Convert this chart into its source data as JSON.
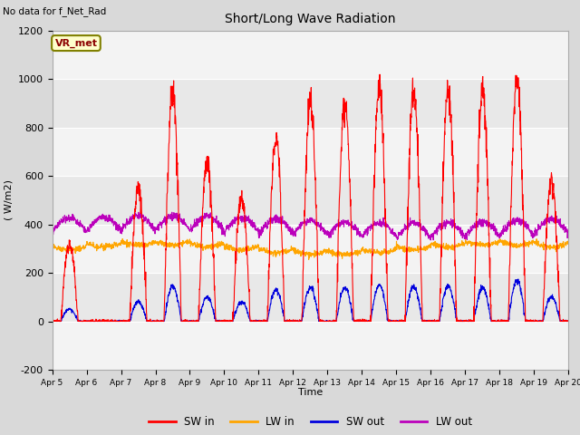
{
  "title": "Short/Long Wave Radiation",
  "top_left_text": "No data for f_Net_Rad",
  "box_label": "VR_met",
  "ylabel": "( W/m2)",
  "xlabel": "Time",
  "ylim": [
    -200,
    1200
  ],
  "yticks": [
    -200,
    0,
    200,
    400,
    600,
    800,
    1000,
    1200
  ],
  "xtick_labels": [
    "Apr 5",
    "Apr 6",
    "Apr 7",
    "Apr 8",
    "Apr 9",
    "Apr 10",
    "Apr 11",
    "Apr 12",
    "Apr 13",
    "Apr 14",
    "Apr 15",
    "Apr 16",
    "Apr 17",
    "Apr 18",
    "Apr 19",
    "Apr 20"
  ],
  "colors": {
    "SW_in": "#ff0000",
    "LW_in": "#ffa500",
    "SW_out": "#0000dd",
    "LW_out": "#bb00bb"
  },
  "legend_labels": [
    "SW in",
    "LW in",
    "SW out",
    "LW out"
  ],
  "background_color": "#d9d9d9",
  "plot_bg_color": "#e8e8e8",
  "n_days": 15,
  "pts_per_day": 144,
  "SW_in_peaks": [
    320,
    0,
    550,
    950,
    660,
    510,
    760,
    910,
    910,
    970,
    950,
    950,
    950,
    1000,
    590,
    0
  ],
  "SW_out_peaks": [
    50,
    0,
    80,
    145,
    100,
    80,
    130,
    140,
    140,
    150,
    145,
    145,
    140,
    165,
    100,
    0
  ],
  "LW_in_base": 310,
  "LW_out_base": 360,
  "figsize": [
    6.4,
    4.8
  ],
  "dpi": 100
}
